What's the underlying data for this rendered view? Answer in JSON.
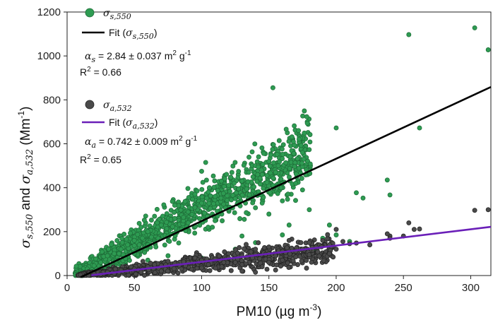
{
  "chart_data": {
    "type": "scatter",
    "xlabel": "PM10 (µg m⁻³)",
    "ylabel": "σs,550 and σa,532 (Mm⁻¹)",
    "xlim": [
      0,
      315
    ],
    "ylim": [
      0,
      1200
    ],
    "x_ticks": [
      0,
      50,
      100,
      150,
      200,
      250,
      300
    ],
    "y_ticks": [
      0,
      200,
      400,
      600,
      800,
      1000,
      1200
    ],
    "grid": false,
    "legend_position": "top-left",
    "series": [
      {
        "name": "σs,550",
        "kind": "points",
        "color": "#2e9b52",
        "fit": {
          "slope": 2.84,
          "intercept": -36,
          "x_range": [
            10,
            315
          ],
          "label": "Fit (σs,550)",
          "color": "#000000"
        },
        "annotation": {
          "coef_symbol": "αs",
          "coef_text": "2.84 ± 0.037 m² g⁻¹",
          "r2_text": "R² = 0.66"
        },
        "sampled_points": [
          [
            153,
            855
          ],
          [
            254,
            1097
          ],
          [
            303,
            1128
          ],
          [
            313,
            1028
          ],
          [
            238,
            435
          ],
          [
            240,
            367
          ],
          [
            262,
            672
          ],
          [
            200,
            672
          ],
          [
            172,
            660
          ],
          [
            215,
            377
          ],
          [
            220,
            353
          ],
          [
            175,
            560
          ],
          [
            155,
            470
          ],
          [
            145,
            460
          ],
          [
            150,
            520
          ],
          [
            130,
            430
          ],
          [
            120,
            410
          ],
          [
            110,
            360
          ],
          [
            100,
            330
          ],
          [
            95,
            310
          ],
          [
            90,
            290
          ],
          [
            80,
            260
          ],
          [
            70,
            230
          ],
          [
            60,
            200
          ],
          [
            50,
            160
          ],
          [
            45,
            140
          ],
          [
            40,
            120
          ],
          [
            35,
            100
          ],
          [
            30,
            90
          ],
          [
            25,
            60
          ],
          [
            20,
            45
          ],
          [
            15,
            30
          ],
          [
            10,
            15
          ],
          [
            8,
            5
          ],
          [
            103,
            515
          ],
          [
            100,
            475
          ],
          [
            140,
            500
          ],
          [
            115,
            280
          ],
          [
            130,
            180
          ],
          [
            160,
            340
          ],
          [
            175,
            390
          ],
          [
            190,
            170
          ],
          [
            165,
            230
          ],
          [
            60,
            140
          ],
          [
            75,
            180
          ],
          [
            85,
            210
          ],
          [
            65,
            270
          ],
          [
            55,
            220
          ],
          [
            105,
            380
          ],
          [
            125,
            350
          ],
          [
            150,
            280
          ],
          [
            180,
            300
          ],
          [
            195,
            230
          ],
          [
            170,
            420
          ],
          [
            135,
            470
          ],
          [
            142,
            495
          ],
          [
            120,
            300
          ],
          [
            90,
            240
          ],
          [
            110,
            250
          ],
          [
            50,
            100
          ],
          [
            30,
            50
          ],
          [
            20,
            20
          ],
          [
            80,
            320
          ],
          [
            95,
            370
          ],
          [
            145,
            330
          ],
          [
            160,
            420
          ],
          [
            185,
            110
          ],
          [
            140,
            150
          ],
          [
            125,
            120
          ],
          [
            100,
            80
          ],
          [
            75,
            90
          ],
          [
            60,
            70
          ],
          [
            40,
            40
          ],
          [
            200,
            185
          ],
          [
            210,
            155
          ],
          [
            160,
            185
          ]
        ]
      },
      {
        "name": "σa,532",
        "kind": "points",
        "color": "#4a4a4a",
        "fit": {
          "slope": 0.742,
          "intercept": -12,
          "x_range": [
            18,
            315
          ],
          "label": "Fit (σa,532)",
          "color": "#6a1fb8"
        },
        "annotation": {
          "coef_symbol": "αa",
          "coef_text": "0.742 ± 0.009 m² g⁻¹",
          "r2_text": "R² = 0.65"
        },
        "sampled_points": [
          [
            303,
            297
          ],
          [
            313,
            300
          ],
          [
            254,
            240
          ],
          [
            258,
            210
          ],
          [
            262,
            212
          ],
          [
            240,
            180
          ],
          [
            238,
            190
          ],
          [
            215,
            148
          ],
          [
            200,
            210
          ],
          [
            205,
            155
          ],
          [
            195,
            140
          ],
          [
            185,
            130
          ],
          [
            175,
            120
          ],
          [
            160,
            110
          ],
          [
            150,
            100
          ],
          [
            140,
            95
          ],
          [
            130,
            90
          ],
          [
            120,
            80
          ],
          [
            110,
            75
          ],
          [
            100,
            70
          ],
          [
            90,
            60
          ],
          [
            80,
            55
          ],
          [
            70,
            45
          ],
          [
            60,
            40
          ],
          [
            50,
            30
          ],
          [
            40,
            25
          ],
          [
            30,
            15
          ],
          [
            20,
            8
          ],
          [
            10,
            3
          ],
          [
            150,
            60
          ],
          [
            160,
            70
          ],
          [
            170,
            85
          ],
          [
            180,
            95
          ],
          [
            145,
            40
          ],
          [
            130,
            50
          ],
          [
            115,
            40
          ],
          [
            100,
            35
          ],
          [
            85,
            30
          ],
          [
            70,
            20
          ],
          [
            55,
            15
          ],
          [
            165,
            160
          ],
          [
            170,
            110
          ],
          [
            190,
            160
          ],
          [
            200,
            120
          ],
          [
            150,
            130
          ],
          [
            140,
            120
          ],
          [
            120,
            100
          ],
          [
            95,
            80
          ],
          [
            75,
            65
          ],
          [
            65,
            50
          ],
          [
            45,
            20
          ],
          [
            35,
            10
          ],
          [
            25,
            5
          ],
          [
            155,
            90
          ],
          [
            180,
            150
          ],
          [
            195,
            100
          ],
          [
            210,
            145
          ],
          [
            225,
            140
          ],
          [
            240,
            170
          ],
          [
            250,
            180
          ],
          [
            125,
            60
          ],
          [
            105,
            50
          ],
          [
            88,
            45
          ],
          [
            155,
            25
          ],
          [
            140,
            15
          ],
          [
            130,
            20
          ]
        ]
      }
    ]
  }
}
